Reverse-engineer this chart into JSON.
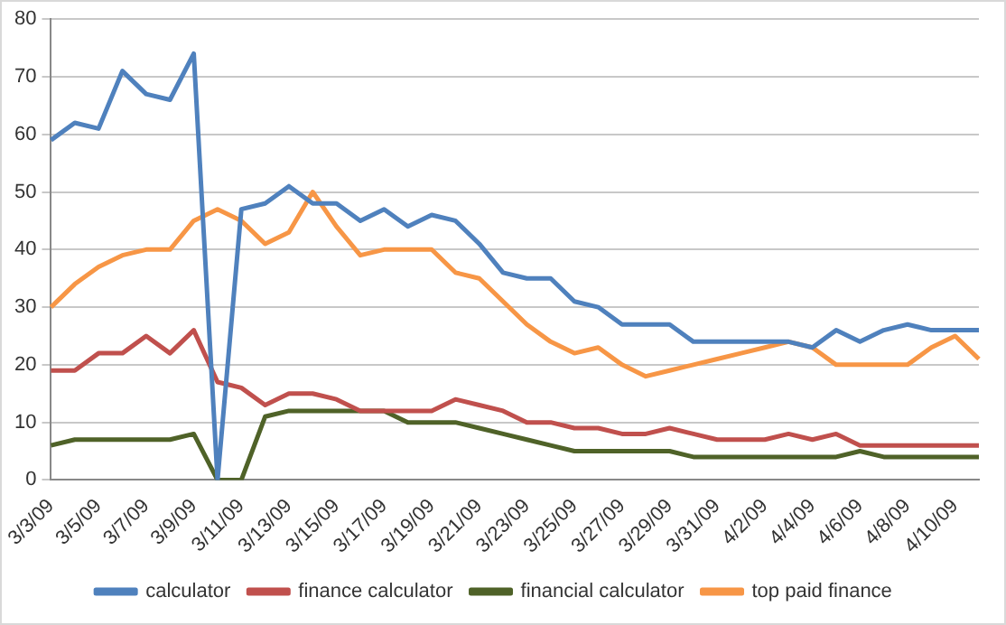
{
  "chart_data": {
    "type": "line",
    "categories": [
      "3/3/09",
      null,
      "3/5/09",
      null,
      "3/7/09",
      null,
      "3/9/09",
      null,
      "3/11/09",
      null,
      "3/13/09",
      null,
      "3/15/09",
      null,
      "3/17/09",
      null,
      "3/19/09",
      null,
      "3/21/09",
      null,
      "3/23/09",
      null,
      "3/25/09",
      null,
      "3/27/09",
      null,
      "3/29/09",
      null,
      "3/31/09",
      null,
      "4/2/09",
      null,
      "4/4/09",
      null,
      "4/6/09",
      null,
      "4/8/09",
      null,
      "4/10/09",
      null
    ],
    "series": [
      {
        "name": "calculator",
        "color": "#4f81bd",
        "values": [
          59,
          62,
          61,
          71,
          67,
          66,
          74,
          0,
          47,
          48,
          51,
          48,
          48,
          45,
          47,
          44,
          46,
          45,
          41,
          36,
          35,
          35,
          31,
          30,
          27,
          27,
          27,
          24,
          24,
          24,
          24,
          24,
          23,
          26,
          24,
          26,
          27,
          26,
          26,
          26
        ]
      },
      {
        "name": "finance calculator",
        "color": "#c0504d",
        "values": [
          19,
          19,
          22,
          22,
          25,
          22,
          26,
          17,
          16,
          13,
          15,
          15,
          14,
          12,
          12,
          12,
          12,
          14,
          13,
          12,
          10,
          10,
          9,
          9,
          8,
          8,
          9,
          8,
          7,
          7,
          7,
          8,
          7,
          8,
          6,
          6,
          6,
          6,
          6,
          6
        ]
      },
      {
        "name": "financial calculator",
        "color": "#4f6228",
        "values": [
          6,
          7,
          7,
          7,
          7,
          7,
          8,
          0,
          0,
          11,
          12,
          12,
          12,
          12,
          12,
          10,
          10,
          10,
          9,
          8,
          7,
          6,
          5,
          5,
          5,
          5,
          5,
          4,
          4,
          4,
          4,
          4,
          4,
          4,
          5,
          4,
          4,
          4,
          4,
          4
        ]
      },
      {
        "name": "top paid finance",
        "color": "#f79646",
        "values": [
          30,
          34,
          37,
          39,
          40,
          40,
          45,
          47,
          45,
          41,
          43,
          50,
          44,
          39,
          40,
          40,
          40,
          36,
          35,
          31,
          27,
          24,
          22,
          23,
          20,
          18,
          19,
          20,
          21,
          22,
          23,
          24,
          23,
          20,
          20,
          20,
          20,
          23,
          25,
          21
        ]
      }
    ],
    "ylim": [
      0,
      80
    ],
    "yticks": [
      0,
      10,
      20,
      30,
      40,
      50,
      60,
      70,
      80
    ],
    "grid": "y",
    "legend": "bottom",
    "marker": "none",
    "line_style": "solid"
  }
}
